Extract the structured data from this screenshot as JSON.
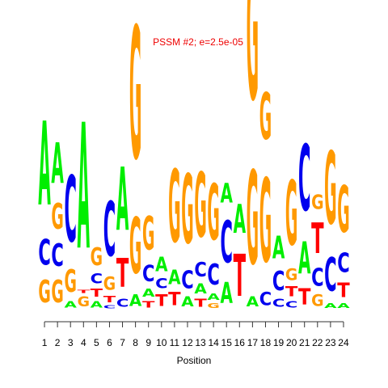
{
  "chart_data": {
    "type": "sequence-logo",
    "title": "PSSM #2; e=2.5e-05",
    "xlabel": "Position",
    "ylabel": "",
    "x_ticks": [
      "1",
      "2",
      "3",
      "4",
      "5",
      "6",
      "7",
      "8",
      "9",
      "10",
      "11",
      "12",
      "13",
      "14",
      "15",
      "16",
      "17",
      "18",
      "19",
      "20",
      "21",
      "22",
      "23",
      "24"
    ],
    "colors": {
      "A": "#00ee00",
      "C": "#0000ee",
      "G": "#ff9900",
      "T": "#ff0000",
      "title": "#ee0000"
    },
    "columns": [
      [
        [
          "G",
          0.14
        ],
        [
          "C",
          0.16
        ],
        [
          "A",
          0.52
        ]
      ],
      [
        [
          "G",
          0.14
        ],
        [
          "C",
          0.14
        ],
        [
          "G",
          0.16
        ],
        [
          "A",
          0.25
        ]
      ],
      [
        [
          "A",
          0.04
        ],
        [
          "G",
          0.14
        ],
        [
          "C",
          0.41
        ]
      ],
      [
        [
          "G",
          0.06
        ],
        [
          "T",
          0.02
        ],
        [
          "A",
          0.78
        ]
      ],
      [
        [
          "A",
          0.04
        ],
        [
          "T",
          0.05
        ],
        [
          "C",
          0.06
        ],
        [
          "G",
          0.11
        ]
      ],
      [
        [
          "C",
          0.02
        ],
        [
          "T",
          0.04
        ],
        [
          "G",
          0.08
        ],
        [
          "C",
          0.34
        ]
      ],
      [
        [
          "C",
          0.05
        ],
        [
          "T",
          0.18
        ],
        [
          "A",
          0.39
        ]
      ],
      [
        [
          "A",
          0.07
        ],
        [
          "G",
          0.35
        ],
        [
          "G",
          0.82
        ]
      ],
      [
        [
          "T",
          0.04
        ],
        [
          "A",
          0.05
        ],
        [
          "C",
          0.1
        ],
        [
          "G",
          0.21
        ]
      ],
      [
        [
          "T",
          0.07
        ],
        [
          "C",
          0.06
        ],
        [
          "A",
          0.09
        ]
      ],
      [
        [
          "T",
          0.08
        ],
        [
          "A",
          0.09
        ],
        [
          "G",
          0.45
        ]
      ],
      [
        [
          "A",
          0.06
        ],
        [
          "C",
          0.11
        ],
        [
          "G",
          0.43
        ]
      ],
      [
        [
          "T",
          0.05
        ],
        [
          "A",
          0.06
        ],
        [
          "C",
          0.09
        ],
        [
          "G",
          0.4
        ]
      ],
      [
        [
          "G",
          0.03
        ],
        [
          "A",
          0.04
        ],
        [
          "C",
          0.13
        ],
        [
          "G",
          0.35
        ]
      ],
      [
        [
          "A",
          0.13
        ],
        [
          "C",
          0.26
        ],
        [
          "A",
          0.12
        ]
      ],
      [
        [
          "T",
          0.26
        ],
        [
          "A",
          0.18
        ]
      ],
      [
        [
          "A",
          0.06
        ],
        [
          "G",
          0.58
        ],
        [
          "G",
          0.86
        ]
      ],
      [
        [
          "C",
          0.08
        ],
        [
          "G",
          0.52
        ],
        [
          "G",
          0.29
        ]
      ],
      [
        [
          "C",
          0.05
        ],
        [
          "C",
          0.12
        ],
        [
          "A",
          0.14
        ]
      ],
      [
        [
          "C",
          0.04
        ],
        [
          "T",
          0.06
        ],
        [
          "G",
          0.07
        ],
        [
          "G",
          0.4
        ]
      ],
      [
        [
          "T",
          0.1
        ],
        [
          "A",
          0.2
        ],
        [
          "C",
          0.41
        ]
      ],
      [
        [
          "G",
          0.07
        ],
        [
          "C",
          0.11
        ],
        [
          "T",
          0.19
        ],
        [
          "G",
          0.09
        ]
      ],
      [
        [
          "A",
          0.03
        ],
        [
          "C",
          0.21
        ],
        [
          "G",
          0.45
        ]
      ],
      [
        [
          "A",
          0.03
        ],
        [
          "T",
          0.09
        ],
        [
          "C",
          0.12
        ],
        [
          "G",
          0.29
        ]
      ]
    ]
  }
}
